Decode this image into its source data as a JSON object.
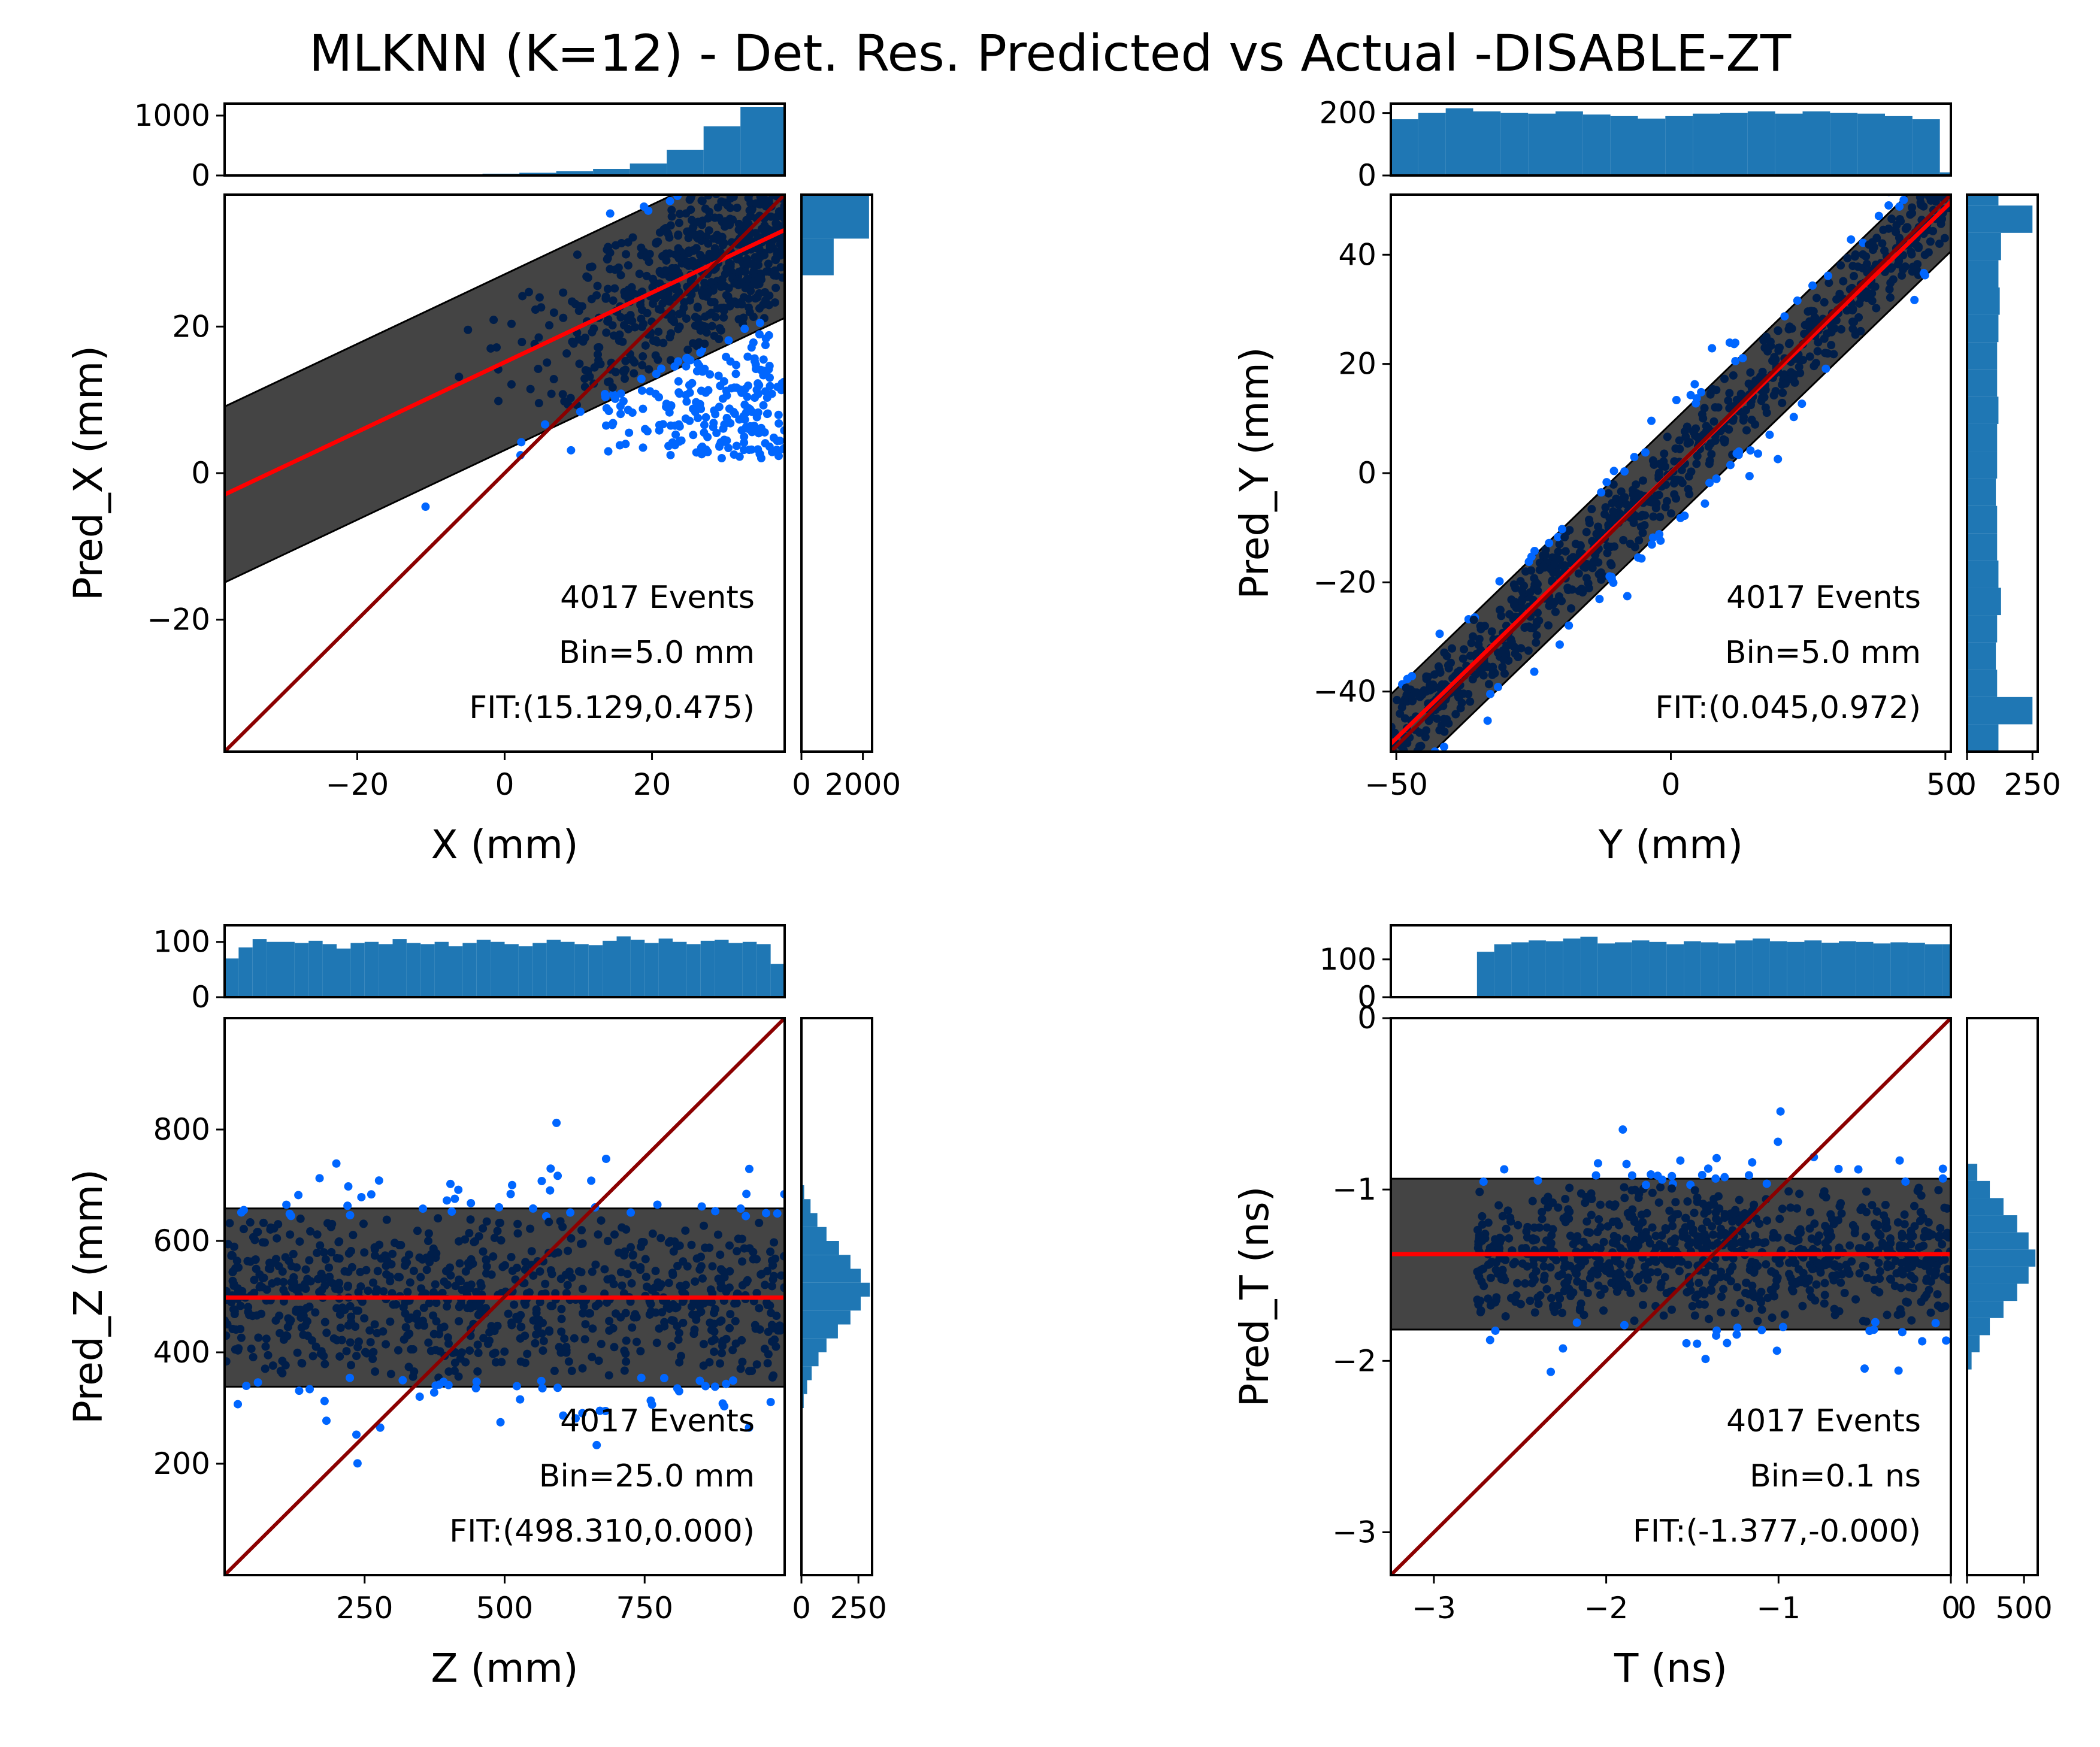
{
  "title": "MLKNN (K=12) - Det. Res. Predicted vs Actual -DISABLE-ZT",
  "colors": {
    "points": "#0066ff",
    "points_dense": "#001e4a",
    "band": "#444444",
    "fit_line": "#ff0000",
    "diag_line": "#8b0000",
    "hist": "#1f77b4"
  },
  "chart_data": [
    {
      "type": "scatter",
      "id": "X",
      "xlabel": "X (mm)",
      "ylabel": "Pred_X (mm)",
      "xlim": [
        -38,
        38
      ],
      "ylim": [
        -38,
        38
      ],
      "xticks": [
        -20,
        0,
        20
      ],
      "xtick_labels": [
        "−20",
        "0",
        "20"
      ],
      "yticks": [
        -20,
        0,
        20
      ],
      "ytick_labels": [
        "−20",
        "0",
        "20"
      ],
      "annotations": [
        "4017 Events",
        "Bin=5.0 mm",
        "FIT:(15.129,0.475)"
      ],
      "fit": {
        "intercept": 15.129,
        "slope": 0.475
      },
      "band_halfwidth": 12,
      "top_hist": {
        "ylim": [
          0,
          1200
        ],
        "yticks": [
          0,
          1000
        ],
        "ytick_labels": [
          "0",
          "1000"
        ],
        "edges": [
          -38,
          -33,
          -28,
          -23,
          -18,
          -13,
          -8,
          -3,
          2,
          7,
          12,
          17,
          22,
          27,
          32,
          38
        ],
        "counts": [
          2,
          3,
          4,
          6,
          8,
          12,
          18,
          30,
          45,
          70,
          110,
          200,
          430,
          820,
          1140
        ]
      },
      "right_hist": {
        "xlim": [
          0,
          2300
        ],
        "xticks": [
          0,
          2000
        ],
        "xtick_labels": [
          "0",
          "2000"
        ],
        "edges": [
          -38,
          -33,
          -28,
          -23,
          -18,
          -13,
          -8,
          -3,
          2,
          7,
          12,
          17,
          22,
          27,
          32,
          38
        ],
        "counts": [
          0,
          0,
          0,
          0,
          0,
          0,
          0,
          0,
          10,
          25,
          30,
          15,
          20,
          1050,
          2200
        ]
      }
    },
    {
      "type": "scatter",
      "id": "Y",
      "xlabel": "Y (mm)",
      "ylabel": "Pred_Y (mm)",
      "xlim": [
        -51,
        51
      ],
      "ylim": [
        -51,
        51
      ],
      "xticks": [
        -50,
        0,
        50
      ],
      "xtick_labels": [
        "−50",
        "0",
        "50"
      ],
      "yticks": [
        -40,
        -20,
        0,
        20,
        40
      ],
      "ytick_labels": [
        "−40",
        "−20",
        "0",
        "20",
        "40"
      ],
      "annotations": [
        "4017 Events",
        "Bin=5.0 mm",
        "FIT:(0.045,0.972)"
      ],
      "fit": {
        "intercept": 0.045,
        "slope": 0.972
      },
      "band_halfwidth": 9,
      "top_hist": {
        "ylim": [
          0,
          230
        ],
        "yticks": [
          0,
          200
        ],
        "ytick_labels": [
          "0",
          "200"
        ],
        "edges": [
          -51,
          -46,
          -41,
          -36,
          -31,
          -26,
          -21,
          -16,
          -11,
          -6,
          -1,
          4,
          9,
          14,
          19,
          24,
          29,
          34,
          39,
          44,
          49,
          51
        ],
        "counts": [
          180,
          200,
          215,
          205,
          200,
          198,
          205,
          195,
          190,
          182,
          190,
          198,
          200,
          205,
          198,
          205,
          200,
          198,
          190,
          180,
          10
        ]
      },
      "right_hist": {
        "xlim": [
          0,
          270
        ],
        "xticks": [
          0,
          250
        ],
        "xtick_labels": [
          "0",
          "250"
        ],
        "edges": [
          -51,
          -46,
          -41,
          -36,
          -31,
          -26,
          -21,
          -16,
          -11,
          -6,
          -1,
          4,
          9,
          14,
          19,
          24,
          29,
          34,
          39,
          44,
          49,
          51
        ],
        "counts": [
          120,
          250,
          115,
          110,
          115,
          130,
          120,
          115,
          115,
          110,
          115,
          115,
          120,
          115,
          115,
          120,
          125,
          120,
          130,
          250,
          120
        ]
      }
    },
    {
      "type": "scatter",
      "id": "Z",
      "xlabel": "Z (mm)",
      "ylabel": "Pred_Z (mm)",
      "xlim": [
        0,
        1000
      ],
      "ylim": [
        0,
        1000
      ],
      "xticks": [
        250,
        500,
        750
      ],
      "xtick_labels": [
        "250",
        "500",
        "750"
      ],
      "yticks": [
        200,
        400,
        600,
        800
      ],
      "ytick_labels": [
        "200",
        "400",
        "600",
        "800"
      ],
      "annotations": [
        "4017 Events",
        "Bin=25.0 mm",
        "FIT:(498.310,0.000)"
      ],
      "fit": {
        "intercept": 498.31,
        "slope": 0.0
      },
      "band_halfwidth": 160,
      "top_hist": {
        "ylim": [
          0,
          130
        ],
        "yticks": [
          0,
          100
        ],
        "ytick_labels": [
          "0",
          "100"
        ],
        "edges": [
          0,
          25,
          50,
          75,
          100,
          125,
          150,
          175,
          200,
          225,
          250,
          275,
          300,
          325,
          350,
          375,
          400,
          425,
          450,
          475,
          500,
          525,
          550,
          575,
          600,
          625,
          650,
          675,
          700,
          725,
          750,
          775,
          800,
          825,
          850,
          875,
          900,
          925,
          950,
          975,
          1000
        ],
        "counts": [
          70,
          90,
          105,
          100,
          100,
          98,
          102,
          96,
          88,
          98,
          100,
          96,
          105,
          98,
          96,
          100,
          92,
          98,
          104,
          100,
          96,
          92,
          98,
          104,
          100,
          96,
          94,
          102,
          110,
          104,
          98,
          106,
          100,
          96,
          102,
          104,
          98,
          100,
          96,
          60
        ]
      },
      "right_hist": {
        "xlim": [
          0,
          310
        ],
        "xticks": [
          0,
          250
        ],
        "xtick_labels": [
          "0",
          "250"
        ],
        "edges": [
          300,
          325,
          350,
          375,
          400,
          425,
          450,
          475,
          500,
          525,
          550,
          575,
          600,
          625,
          650,
          675,
          700
        ],
        "counts": [
          10,
          25,
          45,
          75,
          110,
          160,
          215,
          260,
          300,
          260,
          215,
          165,
          110,
          70,
          40,
          12
        ]
      }
    },
    {
      "type": "scatter",
      "id": "T",
      "xlabel": "T (ns)",
      "ylabel": "Pred_T (ns)",
      "xlim": [
        -3.25,
        0
      ],
      "ylim": [
        -3.25,
        0
      ],
      "xticks": [
        -3,
        -2,
        -1,
        0
      ],
      "xtick_labels": [
        "−3",
        "−2",
        "−1",
        "0"
      ],
      "yticks": [
        -3,
        -2,
        -1,
        0
      ],
      "ytick_labels": [
        "−3",
        "−2",
        "−1",
        "0"
      ],
      "annotations": [
        "4017 Events",
        "Bin=0.1 ns",
        "FIT:(-1.377,-0.000)"
      ],
      "fit": {
        "intercept": -1.377,
        "slope": 0.0
      },
      "band_halfwidth": 0.44,
      "top_hist": {
        "ylim": [
          0,
          190
        ],
        "yticks": [
          0,
          100
        ],
        "ytick_labels": [
          "0",
          "100"
        ],
        "edges": [
          -3.25,
          -3.15,
          -3.05,
          -2.95,
          -2.85,
          -2.75,
          -2.65,
          -2.55,
          -2.45,
          -2.35,
          -2.25,
          -2.15,
          -2.05,
          -1.95,
          -1.85,
          -1.75,
          -1.65,
          -1.55,
          -1.45,
          -1.35,
          -1.25,
          -1.15,
          -1.05,
          -0.95,
          -0.85,
          -0.75,
          -0.65,
          -0.55,
          -0.45,
          -0.35,
          -0.25,
          -0.15,
          -0.05,
          0.0
        ],
        "counts": [
          0,
          0,
          0,
          0,
          0,
          120,
          140,
          145,
          150,
          148,
          155,
          160,
          142,
          145,
          150,
          146,
          140,
          148,
          145,
          142,
          150,
          155,
          148,
          146,
          150,
          144,
          148,
          146,
          142,
          145,
          144,
          140,
          140
        ]
      },
      "right_hist": {
        "xlim": [
          0,
          620
        ],
        "xticks": [
          0,
          500
        ],
        "xtick_labels": [
          "0",
          "500"
        ],
        "edges": [
          -2.05,
          -1.95,
          -1.85,
          -1.75,
          -1.65,
          -1.55,
          -1.45,
          -1.35,
          -1.25,
          -1.15,
          -1.05,
          -0.95,
          -0.85
        ],
        "counts": [
          40,
          110,
          200,
          320,
          440,
          540,
          600,
          540,
          440,
          320,
          200,
          90
        ]
      }
    }
  ]
}
